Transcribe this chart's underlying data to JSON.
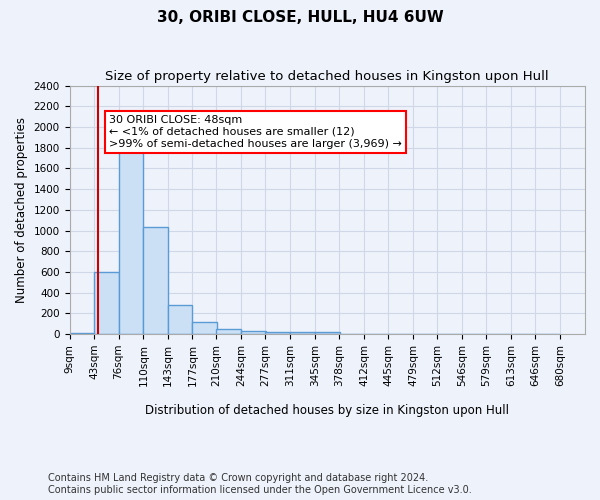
{
  "title": "30, ORIBI CLOSE, HULL, HU4 6UW",
  "subtitle": "Size of property relative to detached houses in Kingston upon Hull",
  "xlabel": "Distribution of detached houses by size in Kingston upon Hull",
  "ylabel": "Number of detached properties",
  "footer_line1": "Contains HM Land Registry data © Crown copyright and database right 2024.",
  "footer_line2": "Contains public sector information licensed under the Open Government Licence v3.0.",
  "bin_labels": [
    "9sqm",
    "43sqm",
    "76sqm",
    "110sqm",
    "143sqm",
    "177sqm",
    "210sqm",
    "244sqm",
    "277sqm",
    "311sqm",
    "345sqm",
    "378sqm",
    "412sqm",
    "445sqm",
    "479sqm",
    "512sqm",
    "546sqm",
    "579sqm",
    "613sqm",
    "646sqm",
    "680sqm"
  ],
  "bin_edges": [
    9,
    43,
    76,
    110,
    143,
    177,
    210,
    244,
    277,
    311,
    345,
    378,
    412,
    445,
    479,
    512,
    546,
    579,
    613,
    646,
    680
  ],
  "bar_values": [
    12,
    600,
    1900,
    1030,
    285,
    115,
    48,
    30,
    20,
    20,
    20,
    0,
    0,
    0,
    0,
    0,
    0,
    0,
    0,
    0
  ],
  "bar_color": "#cce0f5",
  "bar_edge_color": "#5b9bd5",
  "bar_edge_width": 1.0,
  "grid_color": "#d0d8e8",
  "background_color": "#eef2fb",
  "ylim": [
    0,
    2400
  ],
  "yticks": [
    0,
    200,
    400,
    600,
    800,
    1000,
    1200,
    1400,
    1600,
    1800,
    2000,
    2200,
    2400
  ],
  "annotation_text": "30 ORIBI CLOSE: 48sqm\n← <1% of detached houses are smaller (12)\n>99% of semi-detached houses are larger (3,969) →",
  "annotation_box_color": "white",
  "annotation_box_edge_color": "red",
  "red_line_x": 48,
  "red_line_color": "#cc0000",
  "title_fontsize": 11,
  "subtitle_fontsize": 9.5,
  "axis_label_fontsize": 8.5,
  "tick_fontsize": 7.5,
  "annotation_fontsize": 8,
  "footer_fontsize": 7
}
